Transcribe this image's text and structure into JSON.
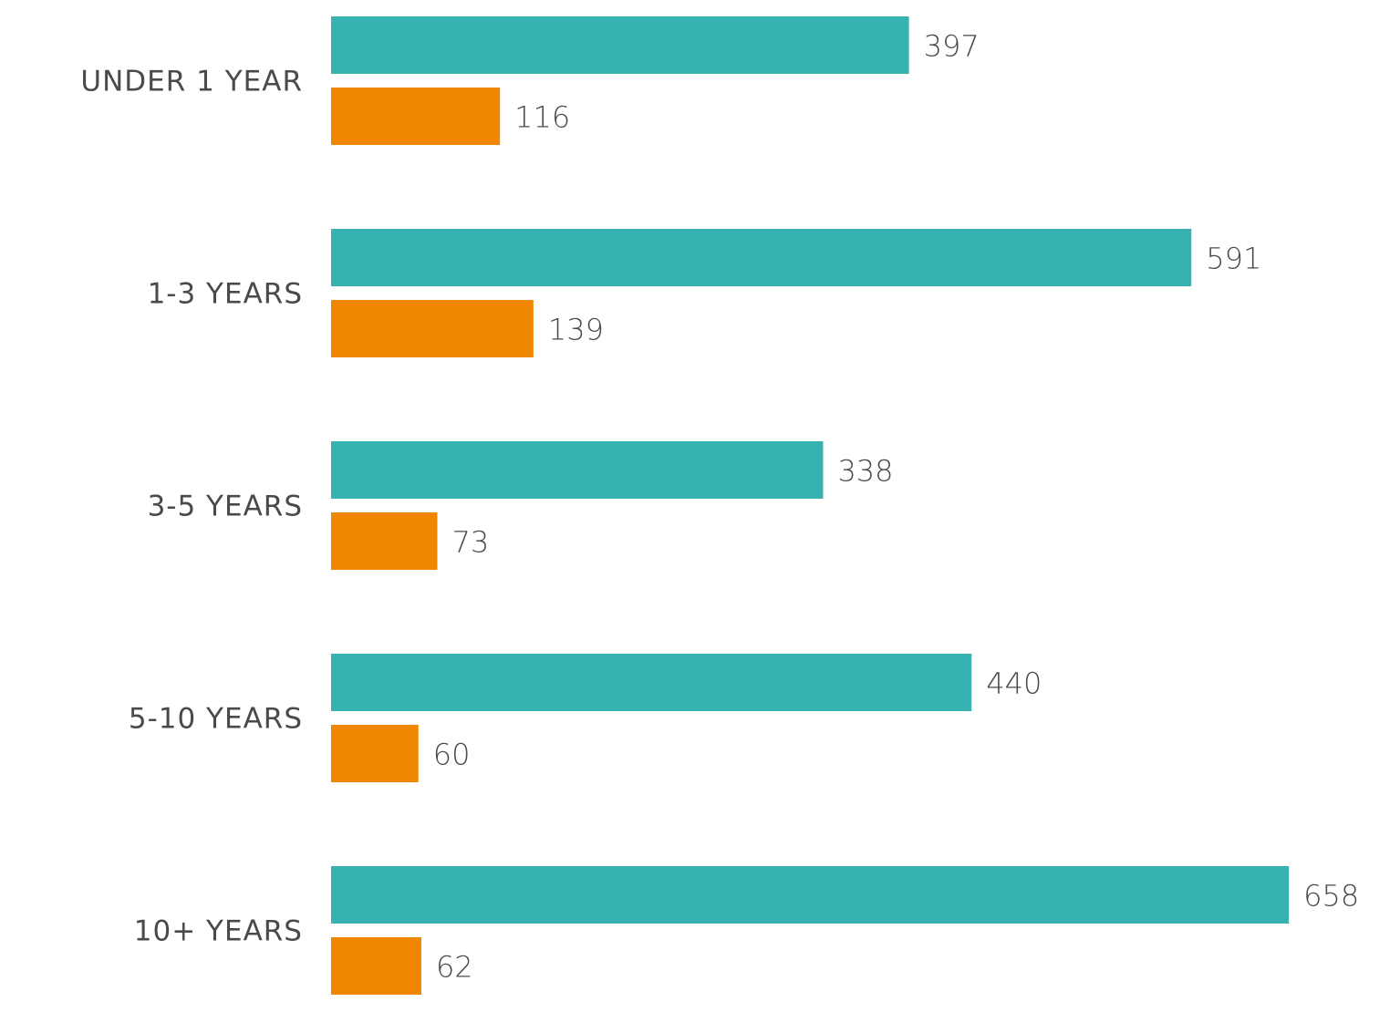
{
  "chart_data": {
    "type": "bar",
    "orientation": "horizontal",
    "categories": [
      "UNDER 1 YEAR",
      "1-3 YEARS",
      "3-5 YEARS",
      "5-10 YEARS",
      "10+ YEARS"
    ],
    "series": [
      {
        "color": "#36b2b0",
        "values": [
          397,
          591,
          338,
          440,
          658
        ]
      },
      {
        "color": "#f08700",
        "values": [
          116,
          139,
          73,
          60,
          62
        ]
      }
    ],
    "data_labels": true,
    "grid": false,
    "legend": "none"
  }
}
